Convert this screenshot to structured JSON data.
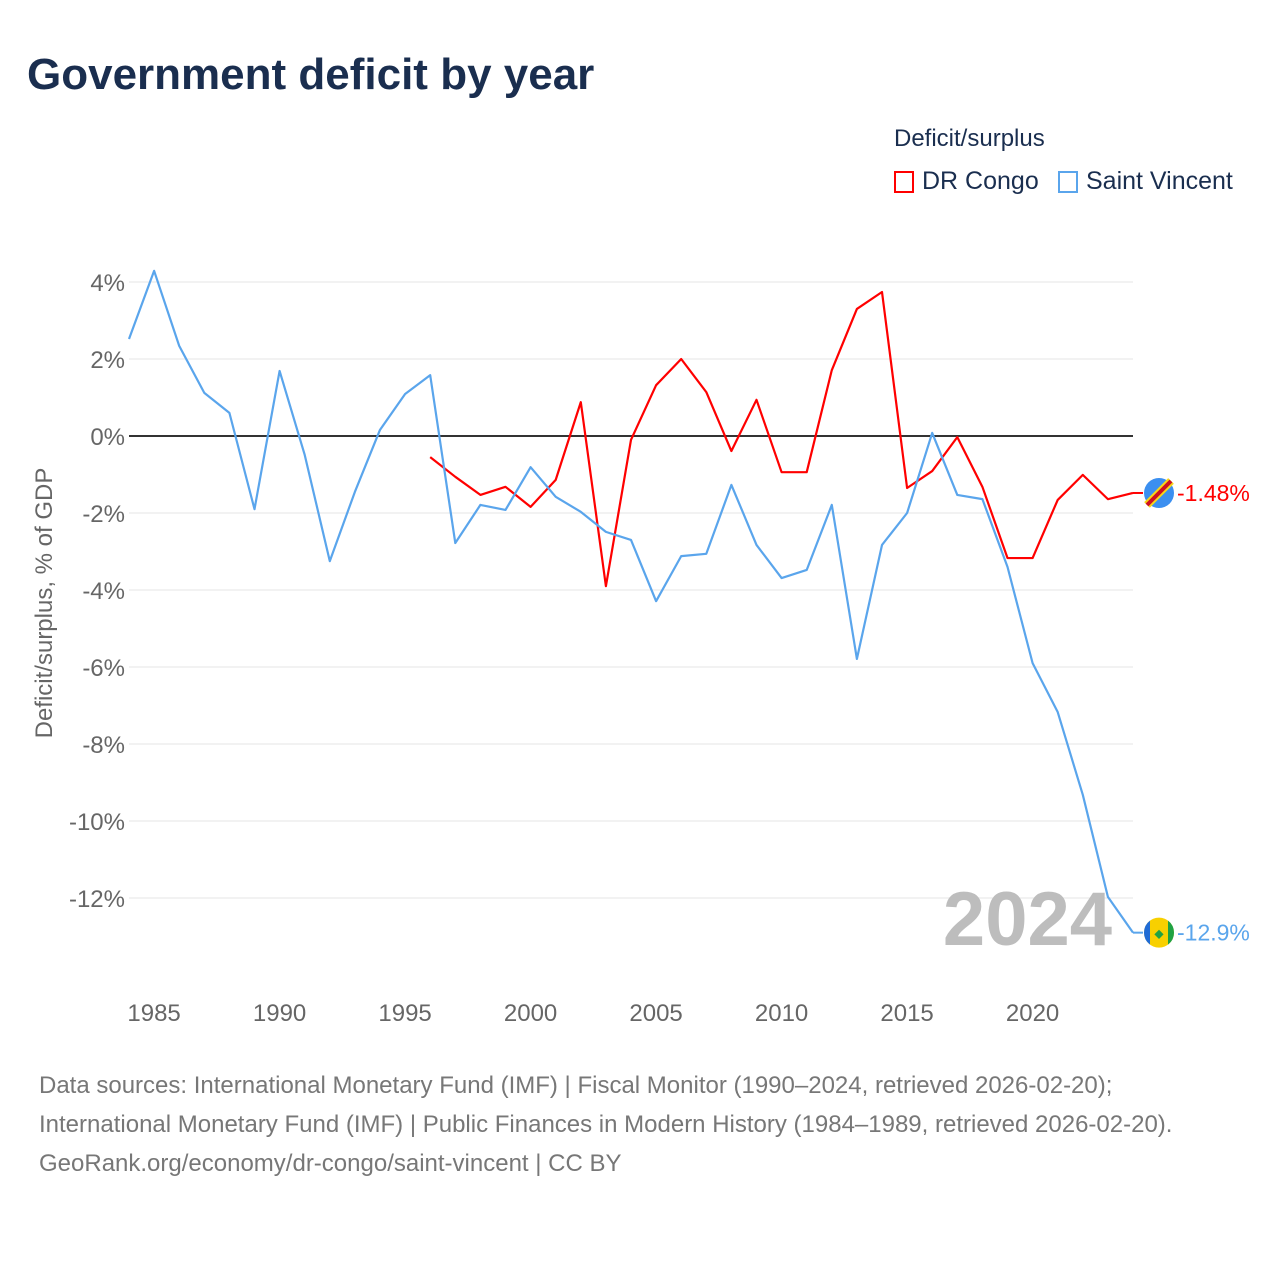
{
  "title": "Government deficit by year",
  "legend": {
    "title": "Deficit/surplus"
  },
  "year_watermark": "2024",
  "sources": {
    "line1": "Data sources: International Monetary Fund (IMF) | Fiscal Monitor (1990–2024, retrieved 2026-02-20); International Monetary Fund (IMF) | Public Finances in Modern History (1984–1989, retrieved 2026-02-20).",
    "line2": "GeoRank.org/economy/dr-congo/saint-vincent | CC BY"
  },
  "chart_data": {
    "type": "line",
    "title": "Government deficit by year",
    "xlabel": "",
    "ylabel": "Deficit/surplus, % of GDP",
    "xlim": [
      1984,
      2024
    ],
    "ylim": [
      -13.8,
      4.4
    ],
    "xticks": [
      1985,
      1990,
      1995,
      2000,
      2005,
      2010,
      2015,
      2020
    ],
    "yticks": [
      4,
      2,
      0,
      -2,
      -4,
      -6,
      -8,
      -10,
      -12
    ],
    "ytick_labels": [
      "4%",
      "2%",
      "0%",
      "-2%",
      "-4%",
      "-6%",
      "-8%",
      "-10%",
      "-12%"
    ],
    "grid": true,
    "legend_position": "top-right",
    "series": [
      {
        "name": "DR Congo",
        "color": "#ff0000",
        "end_label": "-1.48%",
        "x": [
          1996,
          1997,
          1998,
          1999,
          2000,
          2001,
          2002,
          2003,
          2004,
          2005,
          2006,
          2007,
          2008,
          2009,
          2010,
          2011,
          2012,
          2013,
          2014,
          2015,
          2016,
          2017,
          2018,
          2019,
          2020,
          2021,
          2022,
          2023,
          2024
        ],
        "values": [
          -0.55,
          -1.06,
          -1.53,
          -1.32,
          -1.84,
          -1.14,
          0.88,
          -3.9,
          -0.1,
          1.32,
          2.0,
          1.14,
          -0.39,
          0.94,
          -0.94,
          -0.94,
          1.71,
          3.3,
          3.74,
          -1.35,
          -0.91,
          -0.03,
          -1.32,
          -3.17,
          -3.17,
          -1.66,
          -1.01,
          -1.64,
          -1.48
        ]
      },
      {
        "name": "Saint Vincent",
        "color": "#5aa5ec",
        "end_label": "-12.9%",
        "x": [
          1984,
          1985,
          1986,
          1987,
          1988,
          1989,
          1990,
          1991,
          1992,
          1993,
          1994,
          1995,
          1996,
          1997,
          1998,
          1999,
          2000,
          2001,
          2002,
          2003,
          2004,
          2005,
          2006,
          2007,
          2008,
          2009,
          2010,
          2011,
          2012,
          2013,
          2014,
          2015,
          2016,
          2017,
          2018,
          2019,
          2020,
          2021,
          2022,
          2023,
          2024
        ],
        "values": [
          2.52,
          4.29,
          2.34,
          1.12,
          0.6,
          -1.9,
          1.69,
          -0.49,
          -3.25,
          -1.45,
          0.16,
          1.09,
          1.58,
          -2.78,
          -1.79,
          -1.92,
          -0.81,
          -1.58,
          -1.97,
          -2.49,
          -2.7,
          -4.29,
          -3.12,
          -3.06,
          -1.27,
          -2.83,
          -3.69,
          -3.48,
          -1.79,
          -5.79,
          -2.83,
          -2.0,
          0.08,
          -1.53,
          -1.64,
          -3.4,
          -5.9,
          -7.17,
          -9.32,
          -11.97,
          -12.9
        ]
      }
    ]
  }
}
